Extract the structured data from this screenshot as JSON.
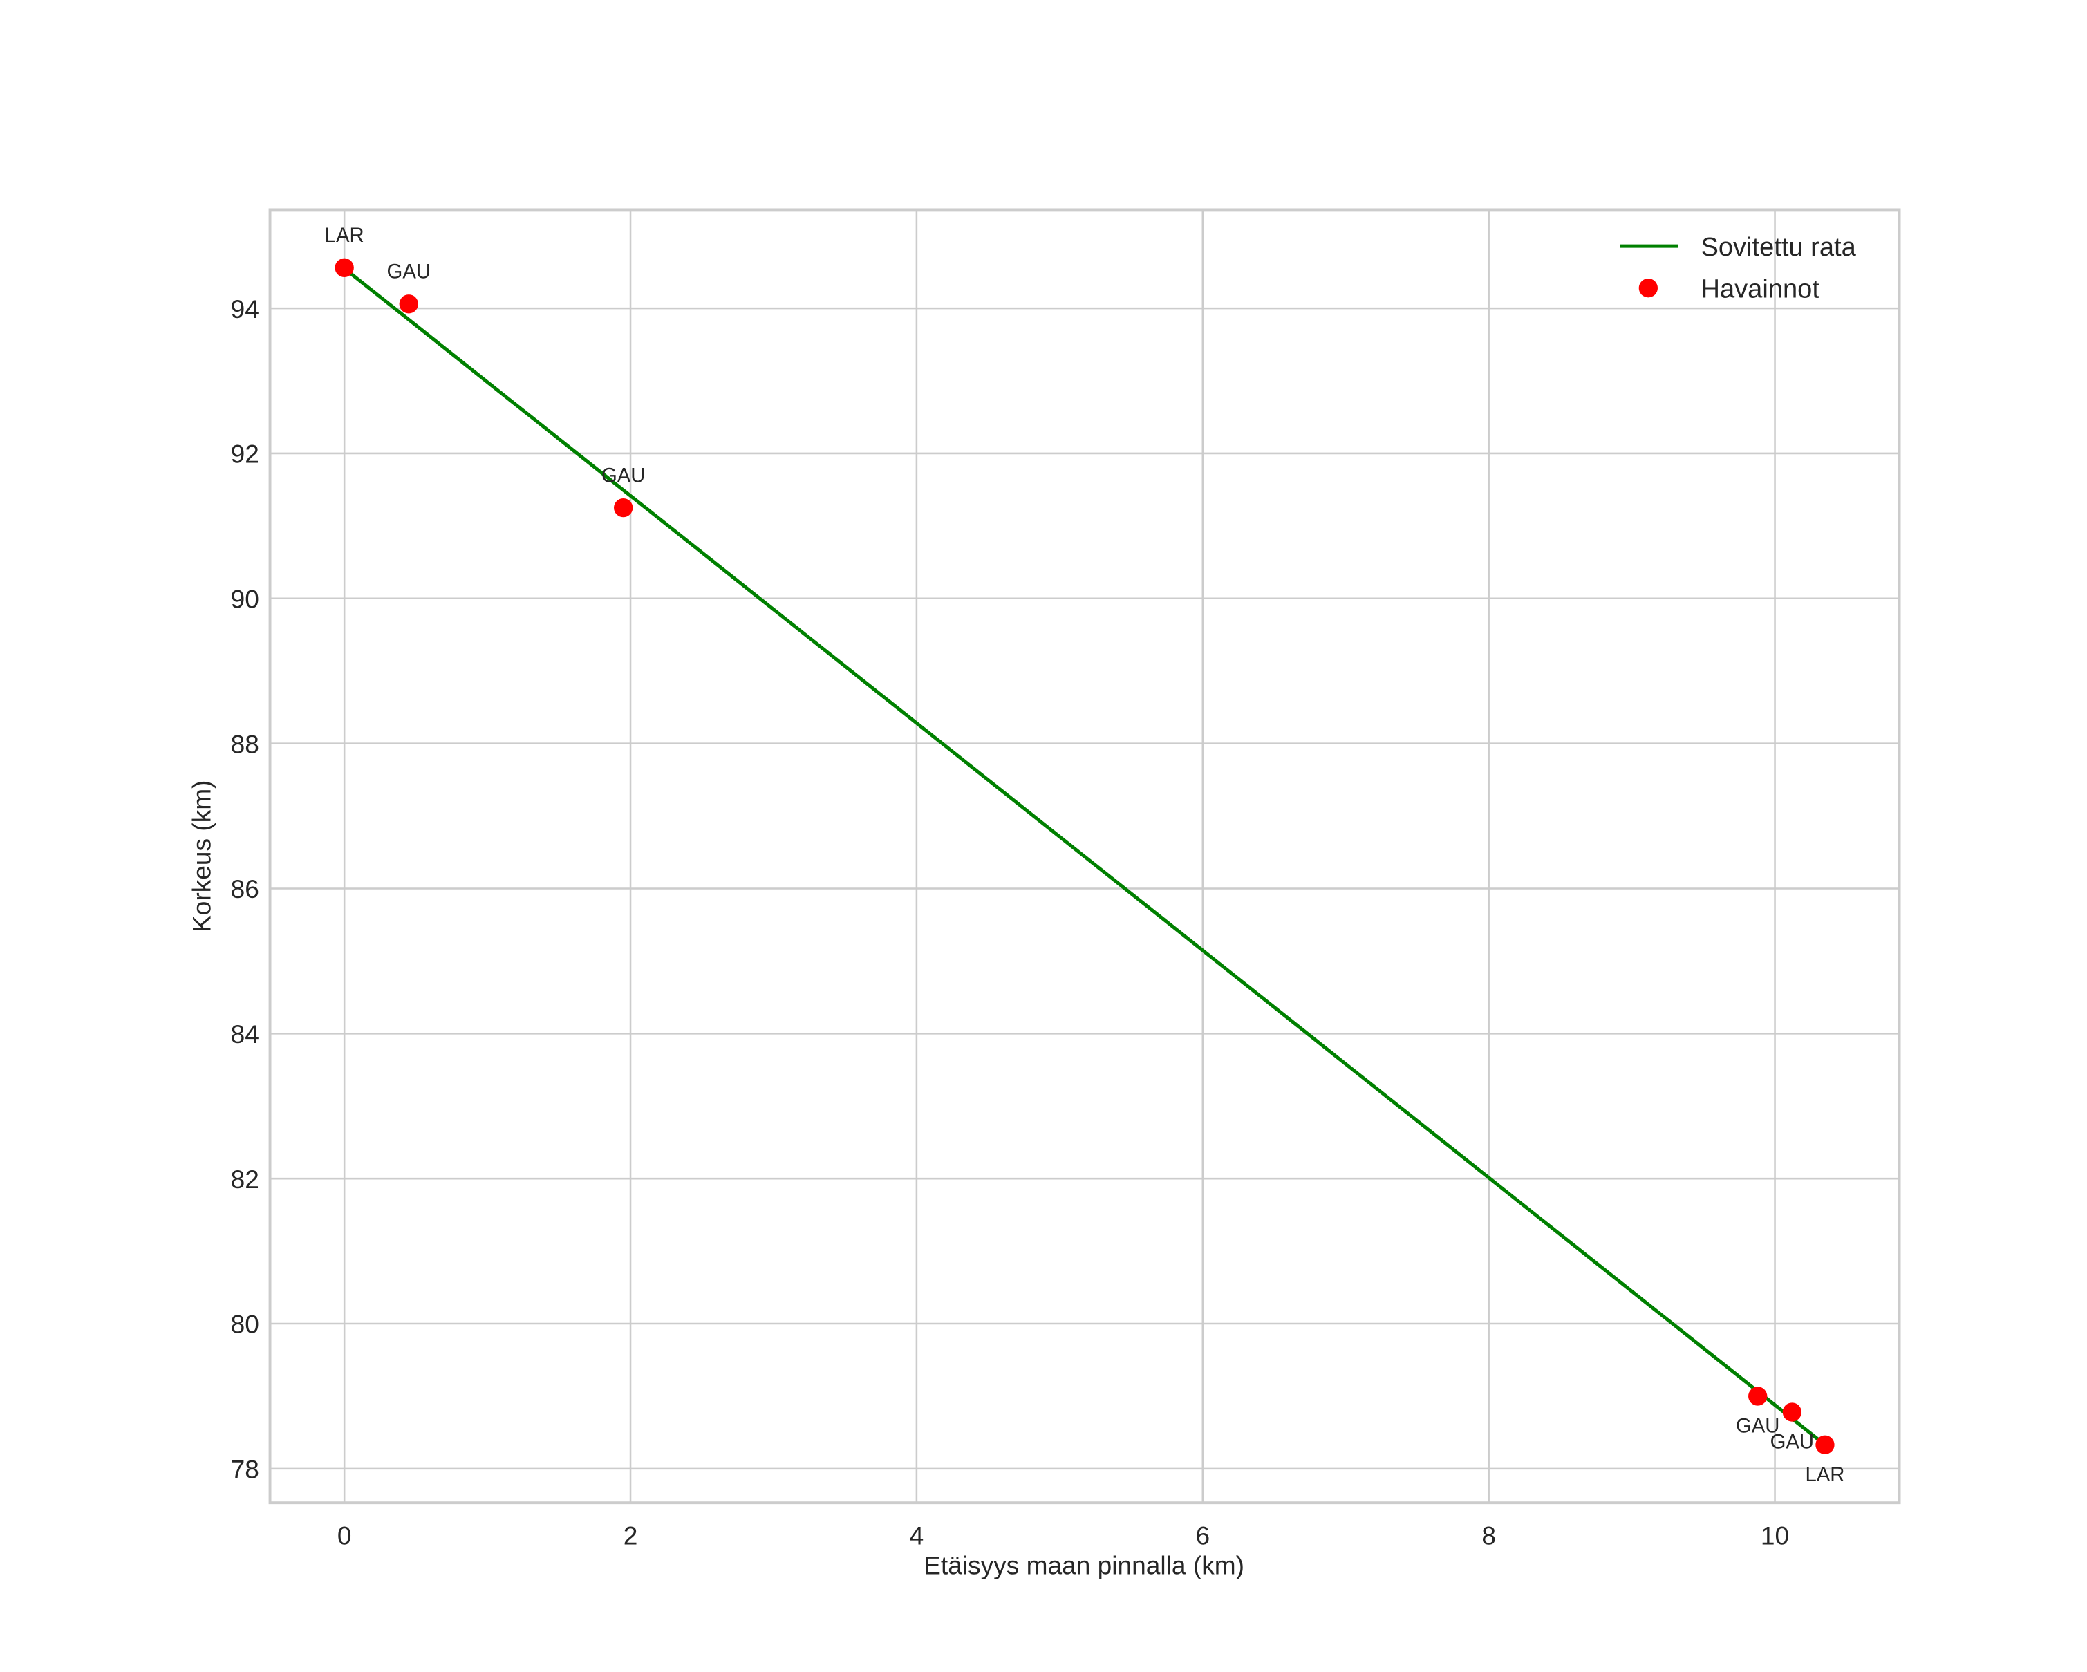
{
  "chart_data": {
    "type": "scatter",
    "title": "",
    "xlabel": "Etäisyys maan pinnalla (km)",
    "ylabel": "Korkeus (km)",
    "xlim": [
      -0.52,
      10.87
    ],
    "ylim": [
      77.53,
      95.36
    ],
    "xticks": [
      0,
      2,
      4,
      6,
      8,
      10
    ],
    "yticks": [
      78,
      80,
      82,
      84,
      86,
      88,
      90,
      92,
      94
    ],
    "grid": true,
    "legend_position": "upper right",
    "series": [
      {
        "name": "Sovitettu rata",
        "kind": "line",
        "color": "#008000",
        "x": [
          0.0,
          10.35
        ],
        "y": [
          94.55,
          78.33
        ]
      },
      {
        "name": "Havainnot",
        "kind": "scatter",
        "color": "#ff0000",
        "points": [
          {
            "x": 0.0,
            "y": 94.56,
            "label": "LAR",
            "label_pos": "above"
          },
          {
            "x": 0.45,
            "y": 94.06,
            "label": "GAU",
            "label_pos": "above"
          },
          {
            "x": 1.95,
            "y": 91.25,
            "label": "GAU",
            "label_pos": "above"
          },
          {
            "x": 9.88,
            "y": 79.0,
            "label": "GAU",
            "label_pos": "below"
          },
          {
            "x": 10.12,
            "y": 78.78,
            "label": "GAU",
            "label_pos": "below"
          },
          {
            "x": 10.35,
            "y": 78.33,
            "label": "LAR",
            "label_pos": "below"
          }
        ]
      }
    ]
  },
  "legend": {
    "items": [
      {
        "label": "Sovitettu rata",
        "marker": "line",
        "color": "#008000"
      },
      {
        "label": "Havainnot",
        "marker": "dot",
        "color": "#ff0000"
      }
    ]
  },
  "axes": {
    "x_tick_labels": [
      "0",
      "2",
      "4",
      "6",
      "8",
      "10"
    ],
    "y_tick_labels": [
      "78",
      "80",
      "82",
      "84",
      "86",
      "88",
      "90",
      "92",
      "94"
    ]
  }
}
